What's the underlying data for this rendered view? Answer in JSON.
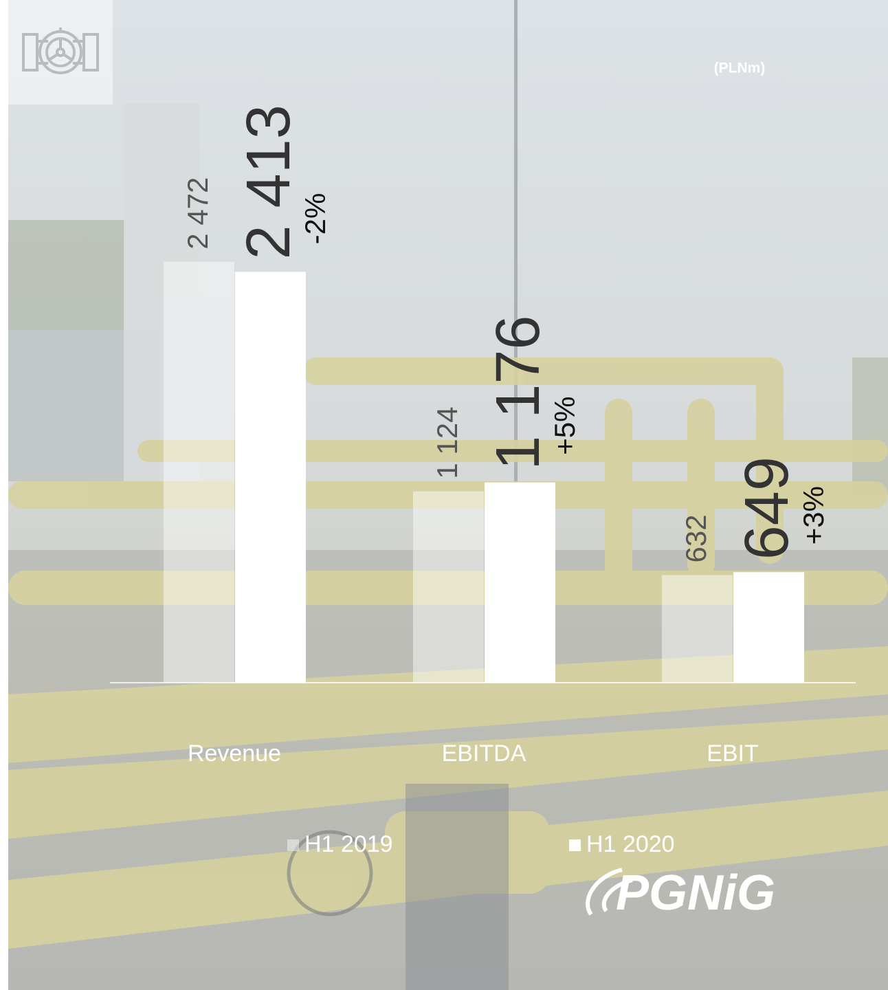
{
  "chart_data": {
    "type": "bar",
    "unit_label": "(PLNm)",
    "categories": [
      "Revenue",
      "EBITDA",
      "EBIT"
    ],
    "series": [
      {
        "name": "H1 2019",
        "color": "rgba(255,255,255,0.45)",
        "values": [
          2472,
          1124,
          632
        ],
        "value_labels": [
          "2 472",
          "1 124",
          "632"
        ]
      },
      {
        "name": "H1 2020",
        "color": "#ffffff",
        "values": [
          2413,
          1176,
          649
        ],
        "value_labels": [
          "2 413",
          "1 176",
          "649"
        ]
      }
    ],
    "changes": [
      "-2%",
      "+5%",
      "+3%"
    ],
    "ylim": [
      0,
      3000
    ],
    "grid": false
  },
  "logo": {
    "text": "PGNiG"
  }
}
